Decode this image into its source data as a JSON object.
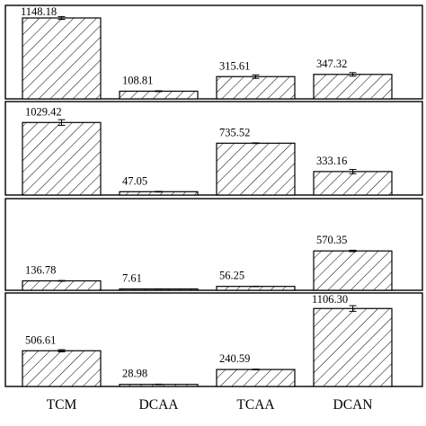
{
  "chart_data": {
    "type": "bar",
    "layout": "stacked-panels",
    "categories": [
      "TCM",
      "DCAA",
      "TCAA",
      "DCAN"
    ],
    "panels": [
      {
        "values": [
          1148.18,
          108.81,
          315.61,
          347.32
        ],
        "labels": [
          "1148.18",
          "108.81",
          "315.61",
          "347.32"
        ],
        "errors": [
          20,
          6,
          25,
          25
        ],
        "ylim": [
          0,
          1250
        ]
      },
      {
        "values": [
          1029.42,
          47.05,
          735.52,
          333.16
        ],
        "labels": [
          "1029.42",
          "47.05",
          "735.52",
          "333.16"
        ],
        "errors": [
          40,
          5,
          5,
          30
        ],
        "ylim": [
          0,
          1250
        ]
      },
      {
        "values": [
          136.78,
          7.61,
          56.25,
          570.35
        ],
        "labels": [
          "136.78",
          "7.61",
          "56.25",
          "570.35"
        ],
        "errors": [
          5,
          1,
          3,
          10
        ],
        "ylim": [
          0,
          1250
        ]
      },
      {
        "values": [
          506.61,
          28.98,
          240.59,
          1106.3
        ],
        "labels": [
          "506.61",
          "28.98",
          "240.59",
          "1106.30"
        ],
        "errors": [
          15,
          4,
          5,
          40
        ],
        "ylim": [
          0,
          1250
        ]
      }
    ],
    "pattern": "diagonal-hatch",
    "bar_color": "#ffffff",
    "line_color": "#000000",
    "grid": false,
    "legend": "none"
  }
}
